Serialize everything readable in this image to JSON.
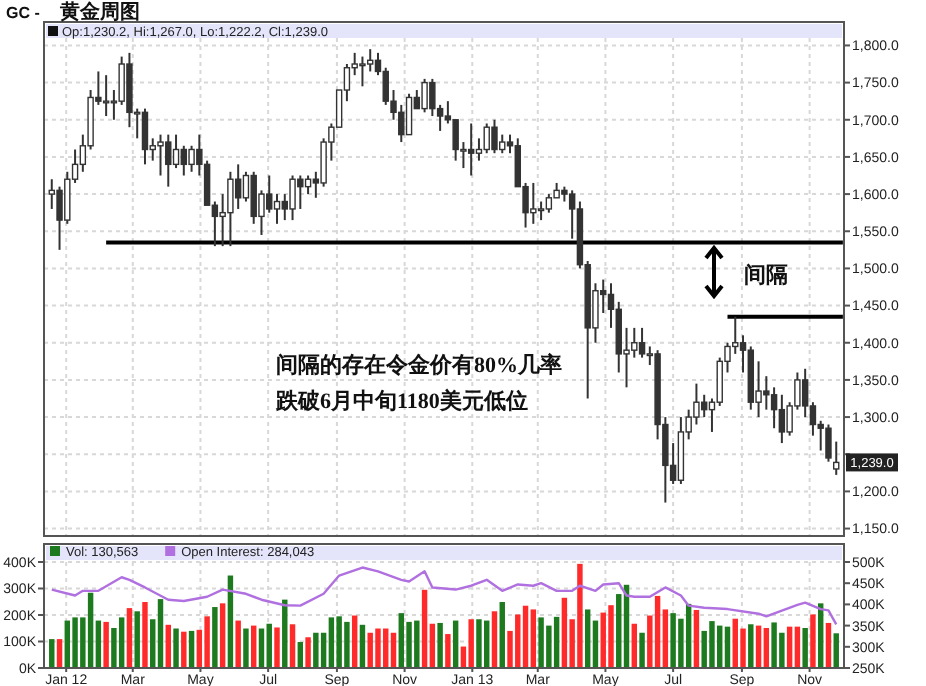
{
  "chart_data": [
    {
      "type": "candlestick",
      "subtitle": "GC -",
      "title": "黄金周图",
      "color": "#333333",
      "x": [
        "2011-12-19",
        "2011-12-26",
        "2012-01-02",
        "2012-01-09",
        "2012-01-16",
        "2012-01-23",
        "2012-01-30",
        "2012-02-06",
        "2012-02-13",
        "2012-02-20",
        "2012-02-27",
        "2012-03-05",
        "2012-03-12",
        "2012-03-19",
        "2012-03-26",
        "2012-04-02",
        "2012-04-09",
        "2012-04-16",
        "2012-04-23",
        "2012-04-30",
        "2012-05-07",
        "2012-05-14",
        "2012-05-21",
        "2012-05-28",
        "2012-06-04",
        "2012-06-11",
        "2012-06-18",
        "2012-06-25",
        "2012-07-02",
        "2012-07-09",
        "2012-07-16",
        "2012-07-23",
        "2012-07-30",
        "2012-08-06",
        "2012-08-13",
        "2012-08-20",
        "2012-08-27",
        "2012-09-03",
        "2012-09-10",
        "2012-09-17",
        "2012-09-24",
        "2012-10-01",
        "2012-10-08",
        "2012-10-15",
        "2012-10-22",
        "2012-10-29",
        "2012-11-05",
        "2012-11-12",
        "2012-11-19",
        "2012-11-26",
        "2012-12-03",
        "2012-12-10",
        "2012-12-17",
        "2012-12-24",
        "2012-12-31",
        "2013-01-07",
        "2013-01-14",
        "2013-01-21",
        "2013-01-28",
        "2013-02-04",
        "2013-02-11",
        "2013-02-18",
        "2013-02-25",
        "2013-03-04",
        "2013-03-11",
        "2013-03-18",
        "2013-03-25",
        "2013-04-01",
        "2013-04-08",
        "2013-04-15",
        "2013-04-22",
        "2013-04-29",
        "2013-05-06",
        "2013-05-13",
        "2013-05-20",
        "2013-05-27",
        "2013-06-03",
        "2013-06-10",
        "2013-06-17",
        "2013-06-24",
        "2013-07-01",
        "2013-07-08",
        "2013-07-15",
        "2013-07-22",
        "2013-07-29",
        "2013-08-05",
        "2013-08-12",
        "2013-08-19",
        "2013-08-26",
        "2013-09-02",
        "2013-09-09",
        "2013-09-16",
        "2013-09-23",
        "2013-09-30",
        "2013-10-07",
        "2013-10-14",
        "2013-10-21",
        "2013-10-28",
        "2013-11-04",
        "2013-11-11",
        "2013-11-18",
        "2013-11-25"
      ],
      "ohlc": [
        [
          1600,
          1620,
          1580,
          1605
        ],
        [
          1605,
          1610,
          1525,
          1565
        ],
        [
          1565,
          1630,
          1560,
          1620
        ],
        [
          1620,
          1660,
          1615,
          1640
        ],
        [
          1640,
          1680,
          1630,
          1665
        ],
        [
          1665,
          1740,
          1660,
          1730
        ],
        [
          1730,
          1765,
          1720,
          1725
        ],
        [
          1725,
          1760,
          1705,
          1725
        ],
        [
          1725,
          1740,
          1700,
          1725
        ],
        [
          1725,
          1785,
          1720,
          1775
        ],
        [
          1775,
          1790,
          1690,
          1710
        ],
        [
          1710,
          1715,
          1675,
          1710
        ],
        [
          1710,
          1715,
          1640,
          1660
        ],
        [
          1660,
          1675,
          1645,
          1665
        ],
        [
          1665,
          1680,
          1625,
          1670
        ],
        [
          1670,
          1680,
          1610,
          1640
        ],
        [
          1640,
          1680,
          1635,
          1660
        ],
        [
          1660,
          1665,
          1625,
          1640
        ],
        [
          1640,
          1665,
          1630,
          1660
        ],
        [
          1660,
          1680,
          1625,
          1640
        ],
        [
          1640,
          1645,
          1585,
          1585
        ],
        [
          1585,
          1590,
          1530,
          1570
        ],
        [
          1570,
          1600,
          1530,
          1575
        ],
        [
          1575,
          1630,
          1530,
          1620
        ],
        [
          1620,
          1640,
          1580,
          1595
        ],
        [
          1595,
          1630,
          1590,
          1625
        ],
        [
          1625,
          1630,
          1560,
          1570
        ],
        [
          1570,
          1605,
          1545,
          1600
        ],
        [
          1600,
          1625,
          1575,
          1580
        ],
        [
          1580,
          1600,
          1560,
          1590
        ],
        [
          1590,
          1600,
          1565,
          1580
        ],
        [
          1580,
          1625,
          1565,
          1620
        ],
        [
          1620,
          1625,
          1580,
          1610
        ],
        [
          1610,
          1625,
          1600,
          1620
        ],
        [
          1620,
          1630,
          1595,
          1615
        ],
        [
          1615,
          1675,
          1610,
          1670
        ],
        [
          1670,
          1695,
          1645,
          1690
        ],
        [
          1690,
          1740,
          1690,
          1740
        ],
        [
          1740,
          1775,
          1725,
          1770
        ],
        [
          1770,
          1790,
          1760,
          1775
        ],
        [
          1775,
          1785,
          1745,
          1775
        ],
        [
          1775,
          1795,
          1765,
          1780
        ],
        [
          1780,
          1790,
          1760,
          1765
        ],
        [
          1765,
          1770,
          1720,
          1725
        ],
        [
          1725,
          1740,
          1700,
          1710
        ],
        [
          1710,
          1720,
          1670,
          1680
        ],
        [
          1680,
          1735,
          1680,
          1730
        ],
        [
          1730,
          1740,
          1715,
          1715
        ],
        [
          1715,
          1755,
          1710,
          1750
        ],
        [
          1750,
          1755,
          1705,
          1715
        ],
        [
          1715,
          1720,
          1685,
          1705
        ],
        [
          1705,
          1725,
          1695,
          1700
        ],
        [
          1700,
          1700,
          1645,
          1660
        ],
        [
          1660,
          1670,
          1635,
          1660
        ],
        [
          1660,
          1695,
          1625,
          1655
        ],
        [
          1655,
          1675,
          1645,
          1660
        ],
        [
          1660,
          1695,
          1655,
          1690
        ],
        [
          1690,
          1700,
          1655,
          1660
        ],
        [
          1660,
          1680,
          1655,
          1670
        ],
        [
          1670,
          1680,
          1655,
          1665
        ],
        [
          1665,
          1675,
          1610,
          1610
        ],
        [
          1610,
          1615,
          1555,
          1575
        ],
        [
          1575,
          1615,
          1560,
          1580
        ],
        [
          1580,
          1590,
          1565,
          1580
        ],
        [
          1580,
          1600,
          1575,
          1595
        ],
        [
          1595,
          1615,
          1595,
          1605
        ],
        [
          1605,
          1610,
          1590,
          1600
        ],
        [
          1600,
          1605,
          1540,
          1580
        ],
        [
          1580,
          1590,
          1500,
          1505
        ],
        [
          1505,
          1510,
          1325,
          1420
        ],
        [
          1420,
          1480,
          1400,
          1470
        ],
        [
          1470,
          1485,
          1440,
          1465
        ],
        [
          1465,
          1480,
          1420,
          1445
        ],
        [
          1445,
          1455,
          1360,
          1385
        ],
        [
          1385,
          1420,
          1340,
          1390
        ],
        [
          1390,
          1420,
          1380,
          1400
        ],
        [
          1400,
          1420,
          1380,
          1385
        ],
        [
          1385,
          1395,
          1370,
          1385
        ],
        [
          1385,
          1390,
          1270,
          1290
        ],
        [
          1290,
          1300,
          1185,
          1235
        ],
        [
          1235,
          1265,
          1210,
          1215
        ],
        [
          1215,
          1300,
          1210,
          1280
        ],
        [
          1280,
          1310,
          1270,
          1300
        ],
        [
          1300,
          1345,
          1290,
          1320
        ],
        [
          1320,
          1330,
          1300,
          1310
        ],
        [
          1310,
          1325,
          1280,
          1320
        ],
        [
          1320,
          1380,
          1315,
          1375
        ],
        [
          1375,
          1400,
          1360,
          1395
        ],
        [
          1395,
          1435,
          1385,
          1400
        ],
        [
          1400,
          1410,
          1360,
          1390
        ],
        [
          1390,
          1395,
          1310,
          1320
        ],
        [
          1320,
          1375,
          1300,
          1335
        ],
        [
          1335,
          1355,
          1310,
          1330
        ],
        [
          1330,
          1340,
          1285,
          1310
        ],
        [
          1310,
          1330,
          1265,
          1280
        ],
        [
          1280,
          1320,
          1275,
          1315
        ],
        [
          1315,
          1360,
          1310,
          1350
        ],
        [
          1350,
          1365,
          1300,
          1315
        ],
        [
          1315,
          1320,
          1275,
          1290
        ],
        [
          1290,
          1295,
          1255,
          1285
        ],
        [
          1285,
          1290,
          1240,
          1245
        ],
        [
          1230.2,
          1267.0,
          1222.2,
          1239.0
        ]
      ],
      "series": [
        {
          "type": "line",
          "color": "#000000",
          "x": [
            "2012-02-06",
            "2013-12-01"
          ],
          "values": [
            1535,
            1535
          ]
        },
        {
          "type": "line",
          "color": "#000000",
          "x": [
            "2013-08-19",
            "2013-12-01"
          ],
          "values": [
            1435,
            1435
          ]
        }
      ],
      "xlim": [
        "2011-12-12",
        "2013-12-02"
      ],
      "ylim": [
        1140,
        1810
      ],
      "xticks": [
        {
          "value": "2012-01-01",
          "label": null
        },
        {
          "value": "2012-03-01",
          "label": null
        },
        {
          "value": "2012-05-01",
          "label": null
        },
        {
          "value": "2012-07-01",
          "label": null
        },
        {
          "value": "2012-09-01",
          "label": null
        },
        {
          "value": "2012-11-01",
          "label": null
        },
        {
          "value": "2013-01-01",
          "label": null
        },
        {
          "value": "2013-03-01",
          "label": null
        },
        {
          "value": "2013-05-01",
          "label": null
        },
        {
          "value": "2013-07-01",
          "label": null
        },
        {
          "value": "2013-09-01",
          "label": null
        },
        {
          "value": "2013-11-01",
          "label": null
        }
      ],
      "yticks": [
        {
          "value": 1150,
          "label": "1,150.0"
        },
        {
          "value": 1200,
          "label": "1,200.0"
        },
        {
          "value": 1250,
          "label": null
        },
        {
          "value": 1300,
          "label": "1,300.0"
        },
        {
          "value": 1350,
          "label": "1,350.0"
        },
        {
          "value": 1400,
          "label": "1,400.0"
        },
        {
          "value": 1450,
          "label": "1,450.0"
        },
        {
          "value": 1500,
          "label": "1,500.0"
        },
        {
          "value": 1550,
          "label": "1,550.0"
        },
        {
          "value": 1600,
          "label": "1,600.0"
        },
        {
          "value": 1650,
          "label": "1,650.0"
        },
        {
          "value": 1700,
          "label": "1,700.0"
        },
        {
          "value": 1750,
          "label": "1,750.0"
        },
        {
          "value": 1800,
          "label": "1,800.0"
        }
      ],
      "tick_labels": "y",
      "grid": true,
      "annotations": [
        "Op:1,230.2, Hi:1,267.0, Lo:1,222.2, Cl:1,239.0",
        "间隔",
        "间隔的存在令金价有80%几率跌破6月中旬1180美元低位",
        {
          "text": "1,239.0",
          "x": "2013-11-25",
          "y": 1239.0
        }
      ]
    },
    {
      "type": "bar",
      "x": [
        "2011-12-19",
        "2011-12-26",
        "2012-01-02",
        "2012-01-09",
        "2012-01-16",
        "2012-01-23",
        "2012-01-30",
        "2012-02-06",
        "2012-02-13",
        "2012-02-20",
        "2012-02-27",
        "2012-03-05",
        "2012-03-12",
        "2012-03-19",
        "2012-03-26",
        "2012-04-02",
        "2012-04-09",
        "2012-04-16",
        "2012-04-23",
        "2012-04-30",
        "2012-05-07",
        "2012-05-14",
        "2012-05-21",
        "2012-05-28",
        "2012-06-04",
        "2012-06-11",
        "2012-06-18",
        "2012-06-25",
        "2012-07-02",
        "2012-07-09",
        "2012-07-16",
        "2012-07-23",
        "2012-07-30",
        "2012-08-06",
        "2012-08-13",
        "2012-08-20",
        "2012-08-27",
        "2012-09-03",
        "2012-09-10",
        "2012-09-17",
        "2012-09-24",
        "2012-10-01",
        "2012-10-08",
        "2012-10-15",
        "2012-10-22",
        "2012-10-29",
        "2012-11-05",
        "2012-11-12",
        "2012-11-19",
        "2012-11-26",
        "2012-12-03",
        "2012-12-10",
        "2012-12-17",
        "2012-12-24",
        "2012-12-31",
        "2013-01-07",
        "2013-01-14",
        "2013-01-21",
        "2013-01-28",
        "2013-02-04",
        "2013-02-11",
        "2013-02-18",
        "2013-02-25",
        "2013-03-04",
        "2013-03-11",
        "2013-03-18",
        "2013-03-25",
        "2013-04-01",
        "2013-04-08",
        "2013-04-15",
        "2013-04-22",
        "2013-04-29",
        "2013-05-06",
        "2013-05-13",
        "2013-05-20",
        "2013-05-27",
        "2013-06-03",
        "2013-06-10",
        "2013-06-17",
        "2013-06-24",
        "2013-07-01",
        "2013-07-08",
        "2013-07-15",
        "2013-07-22",
        "2013-07-29",
        "2013-08-05",
        "2013-08-12",
        "2013-08-19",
        "2013-08-26",
        "2013-09-02",
        "2013-09-09",
        "2013-09-16",
        "2013-09-23",
        "2013-09-30",
        "2013-10-07",
        "2013-10-14",
        "2013-10-21",
        "2013-10-28",
        "2013-11-04",
        "2013-11-11",
        "2013-11-18",
        "2013-11-25"
      ],
      "series": [
        {
          "name": "Vol: 130,563",
          "color": "#1e7a1e",
          "values": [
            109,
            109,
            179,
            191,
            191,
            284,
            179,
            174,
            151,
            191,
            226,
            214,
            249,
            184,
            260,
            163,
            149,
            137,
            140,
            144,
            195,
            230,
            244,
            349,
            179,
            149,
            160,
            149,
            167,
            153,
            258,
            165,
            98,
            116,
            133,
            133,
            191,
            195,
            174,
            198,
            163,
            133,
            149,
            149,
            133,
            207,
            174,
            179,
            295,
            167,
            170,
            128,
            179,
            81,
            184,
            184,
            179,
            214,
            249,
            140,
            202,
            235,
            221,
            191,
            160,
            193,
            265,
            184,
            393,
            221,
            179,
            209,
            237,
            279,
            314,
            167,
            133,
            198,
            272,
            221,
            207,
            186,
            242,
            219,
            140,
            177,
            160,
            156,
            186,
            149,
            165,
            160,
            151,
            172,
            133,
            156,
            156,
            151,
            202,
            244,
            170,
            131
          ],
          "colors": [
            "#1e7a1e",
            "#ff2a2a",
            "#1e7a1e",
            "#1e7a1e",
            "#1e7a1e",
            "#1e7a1e",
            "#1e7a1e",
            "#ff2a2a",
            "#1e7a1e",
            "#1e7a1e",
            "#ff2a2a",
            "#1e7a1e",
            "#ff2a2a",
            "#1e7a1e",
            "#1e7a1e",
            "#ff2a2a",
            "#1e7a1e",
            "#ff2a2a",
            "#1e7a1e",
            "#ff2a2a",
            "#ff2a2a",
            "#1e7a1e",
            "#ff2a2a",
            "#1e7a1e",
            "#ff2a2a",
            "#1e7a1e",
            "#ff2a2a",
            "#1e7a1e",
            "#1e7a1e",
            "#ff2a2a",
            "#1e7a1e",
            "#ff2a2a",
            "#1e7a1e",
            "#ff2a2a",
            "#1e7a1e",
            "#1e7a1e",
            "#1e7a1e",
            "#1e7a1e",
            "#1e7a1e",
            "#ff2a2a",
            "#1e7a1e",
            "#ff2a2a",
            "#ff2a2a",
            "#ff2a2a",
            "#ff2a2a",
            "#1e7a1e",
            "#1e7a1e",
            "#1e7a1e",
            "#ff2a2a",
            "#ff2a2a",
            "#1e7a1e",
            "#ff2a2a",
            "#1e7a1e",
            "#ff2a2a",
            "#ff2a2a",
            "#1e7a1e",
            "#1e7a1e",
            "#ff2a2a",
            "#1e7a1e",
            "#ff2a2a",
            "#ff2a2a",
            "#ff2a2a",
            "#ff2a2a",
            "#1e7a1e",
            "#1e7a1e",
            "#1e7a1e",
            "#ff2a2a",
            "#ff2a2a",
            "#ff2a2a",
            "#1e7a1e",
            "#1e7a1e",
            "#ff2a2a",
            "#ff2a2a",
            "#1e7a1e",
            "#1e7a1e",
            "#ff2a2a",
            "#1e7a1e",
            "#ff2a2a",
            "#ff2a2a",
            "#ff2a2a",
            "#1e7a1e",
            "#1e7a1e",
            "#1e7a1e",
            "#ff2a2a",
            "#1e7a1e",
            "#1e7a1e",
            "#1e7a1e",
            "#1e7a1e",
            "#ff2a2a",
            "#ff2a2a",
            "#1e7a1e",
            "#ff2a2a",
            "#ff2a2a",
            "#1e7a1e",
            "#1e7a1e",
            "#ff2a2a",
            "#ff2a2a",
            "#1e7a1e",
            "#ff2a2a",
            "#1e7a1e",
            "#ff2a2a",
            "#1e7a1e"
          ]
        },
        {
          "name": "Open Interest: 284,043",
          "type": "line",
          "axis": "y2",
          "color": "#b070e0",
          "x": [
            "2011-12-19",
            "2012-01-09",
            "2012-01-16",
            "2012-01-30",
            "2012-02-20",
            "2012-02-27",
            "2012-03-12",
            "2012-04-02",
            "2012-04-16",
            "2012-05-07",
            "2012-05-21",
            "2012-06-11",
            "2012-06-25",
            "2012-07-16",
            "2012-07-30",
            "2012-08-20",
            "2012-09-03",
            "2012-09-24",
            "2012-10-08",
            "2012-10-29",
            "2012-11-05",
            "2012-11-19",
            "2012-11-26",
            "2012-12-17",
            "2012-12-31",
            "2013-01-14",
            "2013-01-28",
            "2013-02-11",
            "2013-02-25",
            "2013-03-04",
            "2013-03-18",
            "2013-04-01",
            "2013-04-08",
            "2013-04-22",
            "2013-04-29",
            "2013-05-13",
            "2013-05-20",
            "2013-05-27",
            "2013-06-10",
            "2013-06-24",
            "2013-07-08",
            "2013-07-15",
            "2013-07-29",
            "2013-08-19",
            "2013-09-16",
            "2013-09-23",
            "2013-10-21",
            "2013-10-28",
            "2013-11-11",
            "2013-11-18",
            "2013-11-25"
          ],
          "values": [
            435,
            421,
            432,
            432,
            464,
            458,
            440,
            411,
            408,
            418,
            435,
            425,
            411,
            398,
            397,
            425,
            468,
            487,
            478,
            458,
            454,
            478,
            440,
            435,
            444,
            458,
            432,
            447,
            444,
            450,
            432,
            432,
            444,
            432,
            447,
            450,
            421,
            418,
            418,
            440,
            421,
            397,
            392,
            389,
            378,
            372,
            399,
            404,
            389,
            386,
            353
          ]
        }
      ],
      "xlim": [
        "2011-12-12",
        "2013-12-02"
      ],
      "ylim": [
        0,
        400
      ],
      "y2lim": [
        250,
        500
      ],
      "xticks": [
        {
          "value": "2012-01-01",
          "label": "Jan 12"
        },
        {
          "value": "2012-03-01",
          "label": "Mar"
        },
        {
          "value": "2012-05-01",
          "label": "May"
        },
        {
          "value": "2012-07-01",
          "label": "Jul"
        },
        {
          "value": "2012-09-01",
          "label": "Sep"
        },
        {
          "value": "2012-11-01",
          "label": "Nov"
        },
        {
          "value": "2013-01-01",
          "label": "Jan 13"
        },
        {
          "value": "2013-03-01",
          "label": "Mar"
        },
        {
          "value": "2013-05-01",
          "label": "May"
        },
        {
          "value": "2013-07-01",
          "label": "Jul"
        },
        {
          "value": "2013-09-01",
          "label": "Sep"
        },
        {
          "value": "2013-11-01",
          "label": "Nov"
        }
      ],
      "yticks": [
        {
          "value": 0,
          "label": "0K"
        },
        {
          "value": 100,
          "label": "100K"
        },
        {
          "value": 200,
          "label": "200K"
        },
        {
          "value": 300,
          "label": "300K"
        },
        {
          "value": 400,
          "label": "400K"
        }
      ],
      "y2ticks": [
        {
          "value": 250,
          "label": "250K"
        },
        {
          "value": 300,
          "label": "300K"
        },
        {
          "value": 350,
          "label": "350K"
        },
        {
          "value": 400,
          "label": "400K"
        },
        {
          "value": 450,
          "label": "450K"
        },
        {
          "value": 500,
          "label": "500K"
        }
      ],
      "grid": true,
      "legend": "top left"
    }
  ]
}
